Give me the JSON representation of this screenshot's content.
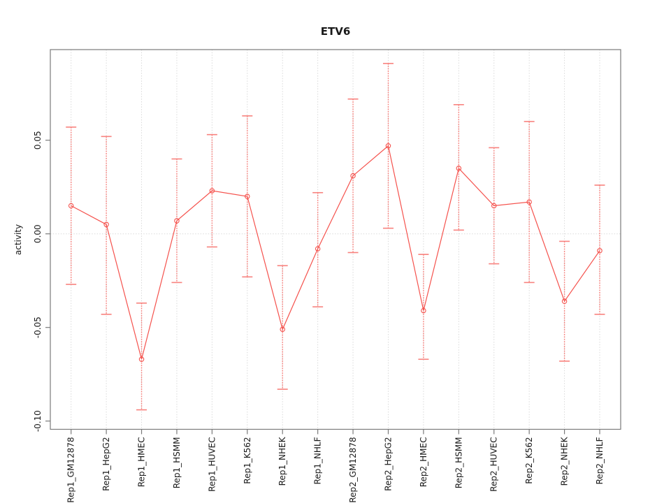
{
  "chart_data": {
    "type": "line",
    "title": "ETV6",
    "ylabel": "activity",
    "xlabel": "",
    "categories": [
      "Rep1_GM12878",
      "Rep1_HepG2",
      "Rep1_HMEC",
      "Rep1_HSMM",
      "Rep1_HUVEC",
      "Rep1_K562",
      "Rep1_NHEK",
      "Rep1_NHLF",
      "Rep2_GM12878",
      "Rep2_HepG2",
      "Rep2_HMEC",
      "Rep2_HSMM",
      "Rep2_HUVEC",
      "Rep2_K562",
      "Rep2_NHEK",
      "Rep2_NHLF"
    ],
    "series": [
      {
        "name": "ETV6 activity",
        "values": [
          0.015,
          0.005,
          -0.067,
          0.007,
          0.023,
          0.02,
          -0.051,
          -0.008,
          0.031,
          0.047,
          -0.041,
          0.035,
          0.015,
          0.017,
          -0.036,
          -0.009
        ],
        "upper": [
          0.057,
          0.052,
          -0.037,
          0.04,
          0.053,
          0.063,
          -0.017,
          0.022,
          0.072,
          0.091,
          -0.011,
          0.069,
          0.046,
          0.06,
          -0.004,
          0.026
        ],
        "lower": [
          -0.027,
          -0.043,
          -0.094,
          -0.026,
          -0.007,
          -0.023,
          -0.083,
          -0.039,
          -0.01,
          0.003,
          -0.067,
          0.002,
          -0.016,
          -0.026,
          -0.068,
          -0.043
        ]
      }
    ],
    "yticks": [
      0.05,
      0,
      -0.05,
      -0.1
    ],
    "ylim": [
      -0.1044,
      0.0984
    ],
    "grid": {
      "vertical_gridlines": true,
      "zero_line": true,
      "horizontal_gridlines": false
    },
    "legend": "none",
    "marker": "open-circle",
    "colors": {
      "series": "#f5524d",
      "error_bar": "#f8827e",
      "grid": "#d9d9d9",
      "axis": "#7a7a7a",
      "text": "#1a1a1a",
      "background": "#ffffff"
    }
  }
}
